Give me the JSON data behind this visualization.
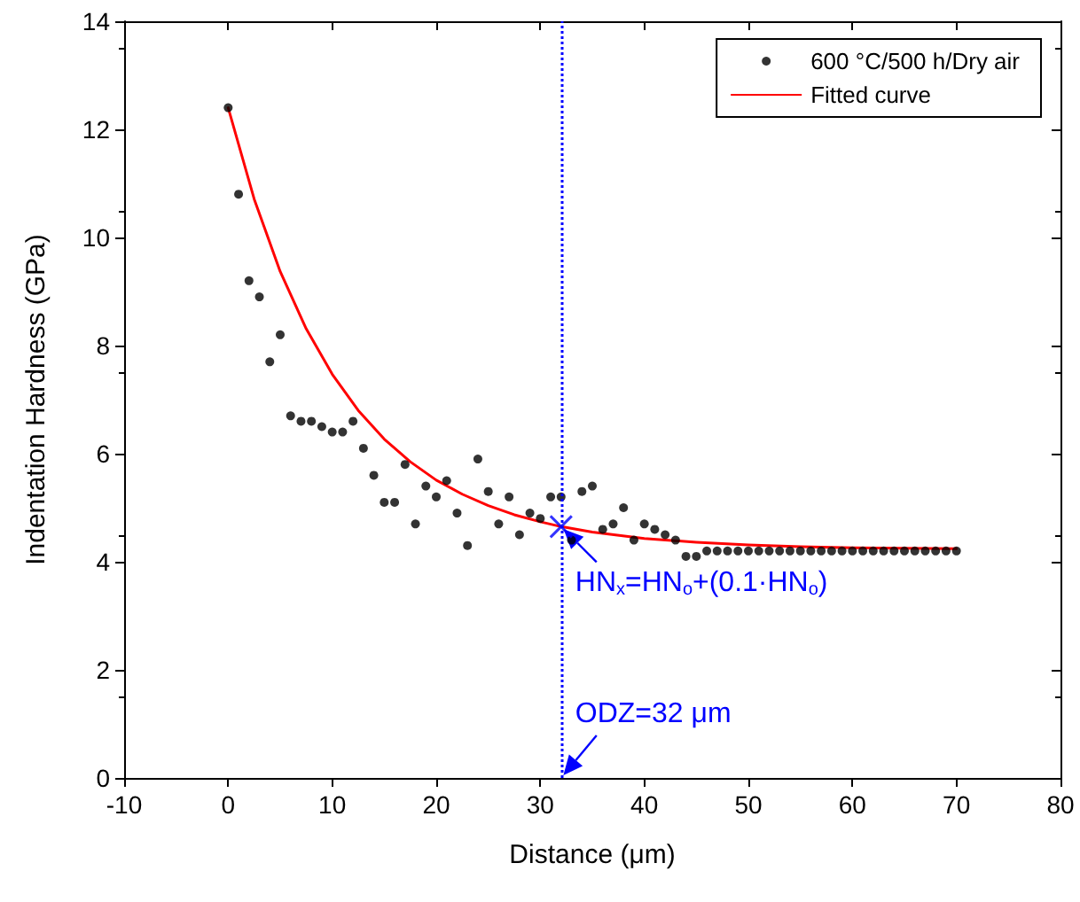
{
  "chart_data": {
    "type": "scatter",
    "xlabel": "Distance (μm)",
    "ylabel": "Indentation Hardness (GPa)",
    "xlim": [
      -10,
      80
    ],
    "xticks": [
      -10,
      0,
      10,
      20,
      30,
      40,
      50,
      60,
      70,
      80
    ],
    "ylim": [
      0,
      14
    ],
    "yticks": [
      0,
      2,
      4,
      6,
      8,
      10,
      12,
      14
    ],
    "grid": false,
    "legend": "top right",
    "marker": "circle",
    "series": [
      {
        "name": "600 °C/500 h/Dry air",
        "color": "#000000",
        "x": [
          0,
          1,
          2,
          3,
          4,
          5,
          6,
          7,
          8,
          9,
          10,
          11,
          12,
          13,
          14,
          15,
          16,
          17,
          18,
          19,
          20,
          21,
          22,
          23,
          24,
          25,
          26,
          27,
          28,
          29,
          30,
          31,
          32,
          33,
          34,
          35,
          36,
          37,
          38,
          39,
          40,
          41,
          42,
          43,
          44,
          45,
          46,
          47,
          48,
          49,
          50,
          51,
          52,
          53,
          54,
          55,
          56,
          57,
          58,
          59,
          60,
          61,
          62,
          63,
          64,
          65,
          66,
          67,
          68,
          69,
          70
        ],
        "values": [
          12.4,
          10.8,
          9.2,
          8.9,
          7.7,
          8.2,
          6.7,
          6.6,
          6.6,
          6.5,
          6.4,
          6.4,
          6.6,
          6.1,
          5.6,
          5.1,
          5.1,
          5.8,
          4.7,
          5.4,
          5.2,
          5.5,
          4.9,
          4.3,
          5.9,
          5.3,
          4.7,
          5.2,
          4.5,
          4.9,
          4.8,
          5.2,
          5.2,
          4.4,
          5.3,
          5.4,
          4.6,
          4.7,
          5.0,
          4.4,
          4.7,
          4.6,
          4.5,
          4.4,
          4.1,
          4.1,
          4.2,
          4.2,
          4.2,
          4.2,
          4.2,
          4.2,
          4.2,
          4.2,
          4.2,
          4.2,
          4.2,
          4.2,
          4.2,
          4.2,
          4.2,
          4.2,
          4.2,
          4.2,
          4.2,
          4.2,
          4.2,
          4.2,
          4.2,
          4.2,
          4.2
        ]
      },
      {
        "name": "Fitted curve",
        "type": "line",
        "color": "#ff0000",
        "marker": "none",
        "line_style": "solid",
        "x": [
          0,
          2.5,
          5,
          7.5,
          10,
          12.5,
          15,
          17.5,
          20,
          22.5,
          25,
          27.5,
          30,
          32,
          35,
          40,
          45,
          50,
          55,
          60,
          70
        ],
        "values": [
          12.4,
          10.71,
          9.37,
          8.31,
          7.47,
          6.8,
          6.27,
          5.85,
          5.51,
          5.25,
          5.04,
          4.87,
          4.74,
          4.65,
          4.55,
          4.43,
          4.36,
          4.31,
          4.28,
          4.26,
          4.24
        ]
      },
      {
        "color": "#0000ff",
        "marker": "cross",
        "x": [
          32
        ],
        "values": [
          4.65
        ]
      }
    ],
    "ref_lines": [
      {
        "axis": "x",
        "value": 32,
        "color": "#0000ff",
        "line_style": "dotted"
      }
    ],
    "annotations": [
      {
        "text": "HN$_{x}$=HN$_{o}$+(0.1·HN$_{o}$)",
        "x": 32,
        "y": 4.65
      },
      {
        "text": "ODZ=32 μm",
        "x": 32,
        "y": 0
      }
    ]
  }
}
